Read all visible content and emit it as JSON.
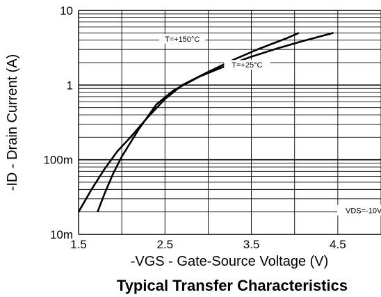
{
  "chart_data": {
    "type": "line",
    "title": "Typical Transfer Characteristics",
    "xlabel": "-VGS - Gate-Source Voltage (V)",
    "ylabel": "-ID - Drain Current (A)",
    "xlim": [
      1.5,
      5.0
    ],
    "ylim": [
      0.01,
      10
    ],
    "yscale": "log",
    "grid": true,
    "x_ticks": [
      1.5,
      2.5,
      3.5,
      4.5
    ],
    "x_tick_labels": [
      "1.5",
      "2.5",
      "3.5",
      "4.5"
    ],
    "y_ticks": [
      0.01,
      0.1,
      1,
      10
    ],
    "y_tick_labels": [
      "10m",
      "100m",
      "1",
      "10"
    ],
    "annotations": [
      "VDS=-10V"
    ],
    "series": [
      {
        "name": "T=+150°C",
        "x": [
          1.5,
          1.65,
          1.8,
          1.95,
          2.1,
          2.3,
          2.5,
          2.7,
          3.0,
          3.3,
          3.6,
          3.9,
          4.05
        ],
        "y": [
          0.02,
          0.04,
          0.075,
          0.13,
          0.2,
          0.37,
          0.65,
          1.0,
          1.5,
          2.2,
          3.1,
          4.2,
          5.0
        ]
      },
      {
        "name": "T=+25°C",
        "x": [
          1.72,
          1.8,
          1.9,
          2.0,
          2.2,
          2.4,
          2.6,
          2.9,
          3.2,
          3.5,
          3.8,
          4.1,
          4.45
        ],
        "y": [
          0.02,
          0.035,
          0.065,
          0.11,
          0.26,
          0.55,
          0.85,
          1.3,
          1.8,
          2.4,
          3.1,
          3.9,
          5.0
        ]
      }
    ]
  }
}
